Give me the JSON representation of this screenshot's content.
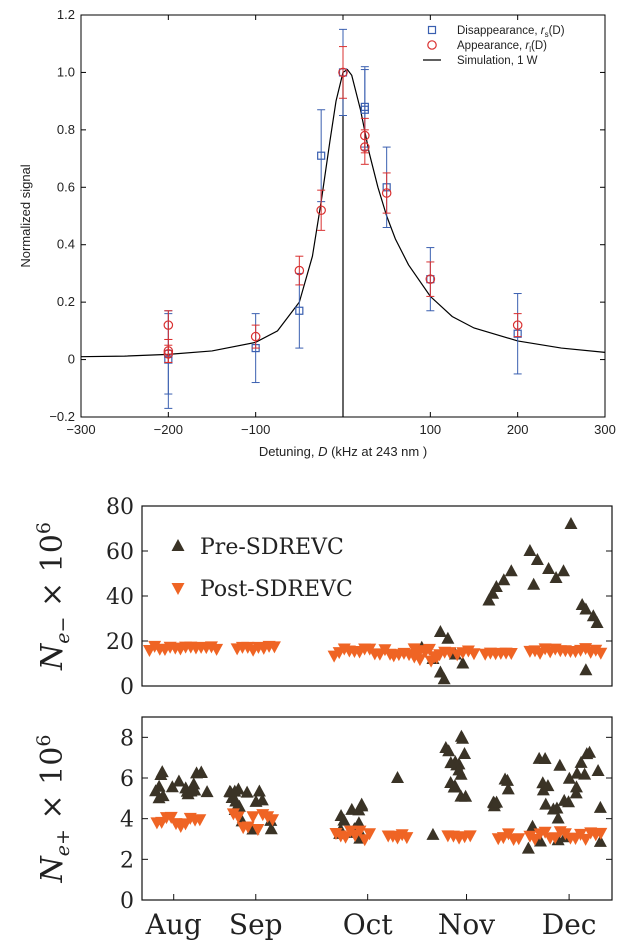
{
  "chart_data": [
    {
      "type": "scatter",
      "xlabel_parts": [
        "Detuning, ",
        "D",
        " (kHz at 243 nm )"
      ],
      "ylabel": "Normalized signal",
      "xlim": [
        -300,
        300
      ],
      "ylim": [
        -0.2,
        1.2
      ],
      "xticks": [
        -300,
        -200,
        -100,
        0,
        100,
        200,
        300
      ],
      "xtick_labels": [
        "−300",
        "−200",
        "−100",
        "",
        "100",
        "200",
        "300"
      ],
      "yticks": [
        -0.2,
        0,
        0.2,
        0.4,
        0.6,
        0.8,
        1.0,
        1.2
      ],
      "ytick_labels": [
        "−0.2",
        "0",
        "0.2",
        "0.4",
        "0.6",
        "0.8",
        "1.0",
        "1.2"
      ],
      "legend_position": "top-right",
      "legend": [
        {
          "label": "Disappearance, ",
          "symbol": "r",
          "sub": "s",
          "tail": "(D)"
        },
        {
          "label": "Appearance, ",
          "symbol": "r",
          "sub": "l",
          "tail": "(D)"
        },
        {
          "label": "Simulation, 1  W",
          "symbol": "",
          "sub": "",
          "tail": ""
        }
      ],
      "series": [
        {
          "name": "Disappearance, rs(D)",
          "marker": "square",
          "color": "#3a5fb0",
          "points": [
            {
              "x": -200,
              "y": 0.0,
              "err": 0.17
            },
            {
              "x": -200,
              "y": 0.02,
              "err": 0.14
            },
            {
              "x": -100,
              "y": 0.04,
              "err": 0.12
            },
            {
              "x": -50,
              "y": 0.17,
              "err": 0.13
            },
            {
              "x": -25,
              "y": 0.71,
              "err": 0.16
            },
            {
              "x": 0,
              "y": 1.0,
              "err": 0.15
            },
            {
              "x": 25,
              "y": 0.88,
              "err": 0.14
            },
            {
              "x": 25,
              "y": 0.87,
              "err": 0.14
            },
            {
              "x": 50,
              "y": 0.6,
              "err": 0.14
            },
            {
              "x": 100,
              "y": 0.28,
              "err": 0.11
            },
            {
              "x": 200,
              "y": 0.09,
              "err": 0.14
            }
          ]
        },
        {
          "name": "Appearance, rl(D)",
          "marker": "circle",
          "color": "#d93030",
          "points": [
            {
              "x": -200,
              "y": 0.12,
              "err": 0.05
            },
            {
              "x": -200,
              "y": 0.03,
              "err": 0.04
            },
            {
              "x": -200,
              "y": 0.02,
              "err": 0.03
            },
            {
              "x": -100,
              "y": 0.08,
              "err": 0.04
            },
            {
              "x": -50,
              "y": 0.31,
              "err": 0.05
            },
            {
              "x": -25,
              "y": 0.52,
              "err": 0.07
            },
            {
              "x": 0,
              "y": 1.0,
              "err": 0.09
            },
            {
              "x": 25,
              "y": 0.78,
              "err": 0.06
            },
            {
              "x": 25,
              "y": 0.74,
              "err": 0.06
            },
            {
              "x": 50,
              "y": 0.58,
              "err": 0.07
            },
            {
              "x": 100,
              "y": 0.28,
              "err": 0.06
            },
            {
              "x": 200,
              "y": 0.12,
              "err": 0.04
            }
          ]
        },
        {
          "name": "Simulation, 1 W",
          "marker": "line",
          "color": "#000000",
          "x": [
            -300,
            -250,
            -200,
            -150,
            -100,
            -75,
            -50,
            -35,
            -25,
            -15,
            -8,
            0,
            5,
            10,
            20,
            30,
            40,
            50,
            60,
            75,
            100,
            125,
            150,
            200,
            250,
            300
          ],
          "y": [
            0.01,
            0.012,
            0.018,
            0.03,
            0.06,
            0.1,
            0.2,
            0.36,
            0.55,
            0.76,
            0.9,
            1.0,
            1.01,
            0.99,
            0.87,
            0.72,
            0.6,
            0.5,
            0.42,
            0.33,
            0.22,
            0.15,
            0.11,
            0.065,
            0.04,
            0.025
          ]
        }
      ]
    },
    {
      "type": "scatter",
      "ylabel": {
        "base": "N",
        "sub": "e−",
        "tail": " × 10",
        "sup": "6"
      },
      "ylim": [
        0,
        80
      ],
      "yticks": [
        0,
        20,
        40,
        60,
        80
      ],
      "ytick_labels": [
        "0",
        "20",
        "40",
        "60",
        "80"
      ],
      "legend_position": "top-left",
      "legend": [
        "Pre-SDREVC",
        "Post-SDREVC"
      ],
      "series": [
        {
          "name": "Pre-SDREVC",
          "marker": "triangle-up",
          "color": "#3a3326",
          "points": [
            {
              "x": 7.5,
              "y": 17
            },
            {
              "x": 8.0,
              "y": 24
            },
            {
              "x": 8.2,
              "y": 21
            },
            {
              "x": 7.8,
              "y": 12
            },
            {
              "x": 8.4,
              "y": 14
            },
            {
              "x": 8.6,
              "y": 10
            },
            {
              "x": 8.0,
              "y": 6
            },
            {
              "x": 8.1,
              "y": 3
            },
            {
              "x": 9.3,
              "y": 38
            },
            {
              "x": 9.5,
              "y": 44
            },
            {
              "x": 9.7,
              "y": 47
            },
            {
              "x": 9.9,
              "y": 51
            },
            {
              "x": 9.4,
              "y": 41
            },
            {
              "x": 10.4,
              "y": 60
            },
            {
              "x": 10.6,
              "y": 56
            },
            {
              "x": 10.9,
              "y": 52
            },
            {
              "x": 11.1,
              "y": 48
            },
            {
              "x": 10.5,
              "y": 45
            },
            {
              "x": 11.3,
              "y": 51
            },
            {
              "x": 11.5,
              "y": 72
            },
            {
              "x": 11.8,
              "y": 36
            },
            {
              "x": 11.9,
              "y": 34
            },
            {
              "x": 12.1,
              "y": 31
            },
            {
              "x": 12.2,
              "y": 28
            },
            {
              "x": 11.9,
              "y": 7
            }
          ]
        },
        {
          "name": "Post-SDREVC",
          "marker": "triangle-down",
          "color": "#ef6424",
          "bands": [
            {
              "x0": 0.2,
              "x1": 2.0,
              "y_min": 16,
              "y_max": 18
            },
            {
              "x0": 2.55,
              "x1": 3.55,
              "y_min": 16,
              "y_max": 18
            },
            {
              "x0": 5.15,
              "x1": 6.65,
              "y_min": 13,
              "y_max": 17
            },
            {
              "x0": 6.75,
              "x1": 8.25,
              "y_min": 13,
              "y_max": 17
            },
            {
              "x0": 7.3,
              "x1": 7.9,
              "y_min": 11,
              "y_max": 16
            },
            {
              "x0": 8.45,
              "x1": 8.9,
              "y_min": 13,
              "y_max": 16
            },
            {
              "x0": 9.2,
              "x1": 9.9,
              "y_min": 14,
              "y_max": 16
            },
            {
              "x0": 10.4,
              "x1": 12.3,
              "y_min": 14,
              "y_max": 17
            }
          ]
        }
      ]
    },
    {
      "type": "scatter",
      "ylabel": {
        "base": "N",
        "sub": "e+",
        "tail": " × 10",
        "sup": "6"
      },
      "ylim": [
        0,
        9
      ],
      "yticks": [
        0,
        2,
        4,
        6,
        8
      ],
      "ytick_labels": [
        "0",
        "2",
        "4",
        "6",
        "8"
      ],
      "xticks_month": [
        {
          "label": "Aug",
          "x": 0.85
        },
        {
          "label": "Sep",
          "x": 3.05
        },
        {
          "label": "Oct",
          "x": 6.05
        },
        {
          "label": "Nov",
          "x": 8.7
        },
        {
          "label": "Dec",
          "x": 11.45
        }
      ],
      "xlim": [
        0,
        12.6
      ],
      "series": [
        {
          "name": "Pre-SDREVC",
          "marker": "triangle-up",
          "color": "#3a3326",
          "clusters": [
            {
              "x0": 0.35,
              "x1": 1.75,
              "y_min": 5.0,
              "y_max": 6.4,
              "n": 18
            },
            {
              "x0": 2.35,
              "x1": 3.6,
              "y_min": 3.4,
              "y_max": 5.5,
              "n": 16
            },
            {
              "x0": 5.15,
              "x1": 5.9,
              "y_min": 2.6,
              "y_max": 4.7,
              "n": 14
            },
            {
              "x0": 6.85,
              "x1": 7.1,
              "y_min": 6.0,
              "y_max": 6.0,
              "n": 1
            },
            {
              "x0": 7.8,
              "x1": 8.1,
              "y_min": 3.2,
              "y_max": 3.2,
              "n": 1
            },
            {
              "x0": 8.1,
              "x1": 8.7,
              "y_min": 5.0,
              "y_max": 8.2,
              "n": 16
            },
            {
              "x0": 9.4,
              "x1": 9.95,
              "y_min": 4.6,
              "y_max": 6.0,
              "n": 7
            },
            {
              "x0": 10.35,
              "x1": 12.3,
              "y_min": 2.5,
              "y_max": 7.3,
              "n": 28
            }
          ]
        },
        {
          "name": "Post-SDREVC",
          "marker": "triangle-down",
          "color": "#ef6424",
          "bands": [
            {
              "x0": 0.4,
              "x1": 1.55,
              "y_min": 3.6,
              "y_max": 4.1
            },
            {
              "x0": 2.45,
              "x1": 3.5,
              "y_min": 3.4,
              "y_max": 4.3
            },
            {
              "x0": 5.2,
              "x1": 6.1,
              "y_min": 2.8,
              "y_max": 3.5
            },
            {
              "x0": 6.6,
              "x1": 7.1,
              "y_min": 3.0,
              "y_max": 3.4
            },
            {
              "x0": 8.2,
              "x1": 8.8,
              "y_min": 3.0,
              "y_max": 3.2
            },
            {
              "x0": 9.55,
              "x1": 10.1,
              "y_min": 3.0,
              "y_max": 3.3
            },
            {
              "x0": 10.4,
              "x1": 12.3,
              "y_min": 3.0,
              "y_max": 3.4
            }
          ]
        }
      ]
    }
  ]
}
